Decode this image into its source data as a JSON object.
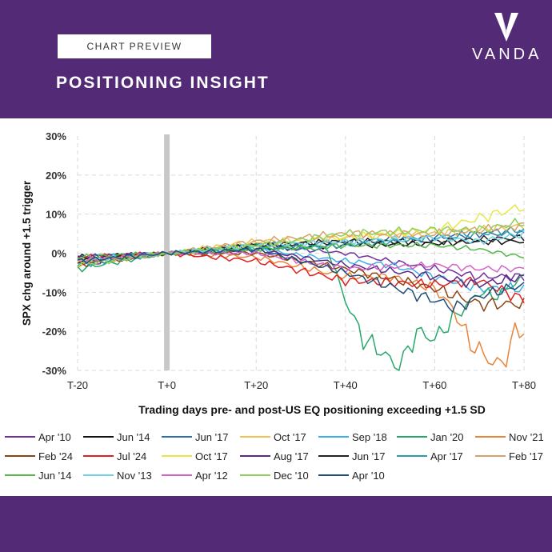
{
  "header": {
    "badge": "CHART PREVIEW",
    "title": "POSITIONING INSIGHT",
    "logo_text": "VANDA"
  },
  "colors": {
    "brand": "#522a76",
    "grid": "#d9d9d9",
    "marker": "#c8c8c8"
  },
  "chart_data": {
    "type": "line",
    "title": "",
    "xlabel": "Trading days pre- and post-US EQ positioning exceeding +1.5 SD",
    "ylabel": "SPX chg around +1.5 trigger",
    "xlim": [
      -20,
      80
    ],
    "ylim": [
      -30,
      30
    ],
    "xticks": [
      -20,
      0,
      20,
      40,
      60,
      80
    ],
    "x_tick_labels": [
      "T-20",
      "T+0",
      "T+20",
      "T+40",
      "T+60",
      "T+80"
    ],
    "yticks": [
      30,
      20,
      10,
      0,
      -10,
      -20,
      -30
    ],
    "y_tick_labels": [
      "30%",
      "20%",
      "10%",
      "0%",
      "-10%",
      "-20%",
      "-30%"
    ],
    "grid": true,
    "trigger_day": 0,
    "series": [
      {
        "name": "Apr '10",
        "color": "#7030a0",
        "points": [
          [
            -20,
            -3
          ],
          [
            0,
            0
          ],
          [
            20,
            2
          ],
          [
            30,
            1
          ],
          [
            40,
            0
          ],
          [
            50,
            -2
          ],
          [
            60,
            -4
          ],
          [
            70,
            -6
          ],
          [
            80,
            -6
          ]
        ]
      },
      {
        "name": "Jun '14",
        "color": "#111111",
        "points": [
          [
            -20,
            -1
          ],
          [
            0,
            0
          ],
          [
            20,
            1
          ],
          [
            40,
            2
          ],
          [
            60,
            2.5
          ],
          [
            70,
            3
          ],
          [
            80,
            3
          ]
        ]
      },
      {
        "name": "Jun '17",
        "color": "#2e6fa8",
        "points": [
          [
            -20,
            -2
          ],
          [
            0,
            0
          ],
          [
            20,
            2
          ],
          [
            40,
            3
          ],
          [
            60,
            4
          ],
          [
            70,
            5
          ],
          [
            80,
            5
          ]
        ]
      },
      {
        "name": "Oct '17",
        "color": "#f2c14e",
        "points": [
          [
            -20,
            -3
          ],
          [
            0,
            0
          ],
          [
            20,
            3
          ],
          [
            40,
            4
          ],
          [
            60,
            5
          ],
          [
            70,
            6
          ],
          [
            80,
            7
          ]
        ]
      },
      {
        "name": "Sep '18",
        "color": "#3bb0e6",
        "points": [
          [
            -20,
            -1
          ],
          [
            0,
            0
          ],
          [
            20,
            1
          ],
          [
            40,
            -2
          ],
          [
            50,
            -3
          ],
          [
            60,
            -6
          ],
          [
            70,
            -9
          ],
          [
            80,
            -9
          ]
        ]
      },
      {
        "name": "Jan '20",
        "color": "#27a86a",
        "points": [
          [
            -20,
            -4
          ],
          [
            0,
            0
          ],
          [
            20,
            2
          ],
          [
            36,
            1
          ],
          [
            40,
            -12
          ],
          [
            44,
            -22
          ],
          [
            48,
            -25
          ],
          [
            52,
            -30
          ],
          [
            56,
            -20
          ],
          [
            60,
            -22
          ],
          [
            64,
            -17
          ],
          [
            70,
            -10
          ],
          [
            74,
            -11
          ],
          [
            80,
            -6
          ]
        ]
      },
      {
        "name": "Nov '21",
        "color": "#e8843a",
        "points": [
          [
            -20,
            -2
          ],
          [
            0,
            0
          ],
          [
            20,
            -1
          ],
          [
            40,
            -6
          ],
          [
            50,
            -6
          ],
          [
            60,
            -9
          ],
          [
            64,
            -14
          ],
          [
            68,
            -23
          ],
          [
            72,
            -27
          ],
          [
            75,
            -29
          ],
          [
            78,
            -20
          ],
          [
            80,
            -20
          ]
        ]
      },
      {
        "name": "Feb '24",
        "color": "#8b4513",
        "points": [
          [
            -20,
            -3
          ],
          [
            0,
            0
          ],
          [
            20,
            0
          ],
          [
            40,
            -4
          ],
          [
            60,
            -9
          ],
          [
            70,
            -13
          ],
          [
            80,
            -13
          ]
        ]
      },
      {
        "name": "Jul '24",
        "color": "#e02020",
        "points": [
          [
            -20,
            -1
          ],
          [
            0,
            0
          ],
          [
            20,
            -2
          ],
          [
            40,
            -7
          ],
          [
            60,
            -8
          ],
          [
            70,
            -7
          ],
          [
            80,
            -12
          ]
        ]
      },
      {
        "name": "Oct '17",
        "color": "#e6e64a",
        "points": [
          [
            -20,
            -2
          ],
          [
            0,
            0
          ],
          [
            20,
            2
          ],
          [
            40,
            4
          ],
          [
            60,
            6
          ],
          [
            70,
            9
          ],
          [
            80,
            12
          ]
        ]
      },
      {
        "name": "Aug '17",
        "color": "#5b2a86",
        "points": [
          [
            -20,
            -1
          ],
          [
            0,
            0
          ],
          [
            20,
            1
          ],
          [
            40,
            -3
          ],
          [
            60,
            -6
          ],
          [
            70,
            -8
          ],
          [
            80,
            -6
          ]
        ]
      },
      {
        "name": "Jun '17",
        "color": "#222222",
        "points": [
          [
            -20,
            -2
          ],
          [
            0,
            0
          ],
          [
            20,
            2
          ],
          [
            40,
            3
          ],
          [
            60,
            3
          ],
          [
            80,
            4
          ]
        ]
      },
      {
        "name": "Apr '17",
        "color": "#2a9db5",
        "points": [
          [
            -20,
            -3
          ],
          [
            0,
            0
          ],
          [
            20,
            1
          ],
          [
            40,
            2
          ],
          [
            60,
            4
          ],
          [
            80,
            6
          ]
        ]
      },
      {
        "name": "Feb '17",
        "color": "#d9a06a",
        "points": [
          [
            -20,
            -2
          ],
          [
            0,
            0
          ],
          [
            20,
            3
          ],
          [
            40,
            5
          ],
          [
            60,
            5
          ],
          [
            80,
            7
          ]
        ]
      },
      {
        "name": "Jun '14",
        "color": "#52b848",
        "points": [
          [
            -20,
            -1
          ],
          [
            0,
            0
          ],
          [
            20,
            1
          ],
          [
            40,
            2
          ],
          [
            60,
            2
          ],
          [
            70,
            1
          ],
          [
            80,
            -1
          ]
        ]
      },
      {
        "name": "Nov '13",
        "color": "#6fd3e6",
        "points": [
          [
            -20,
            -2
          ],
          [
            0,
            0
          ],
          [
            20,
            2
          ],
          [
            40,
            3
          ],
          [
            60,
            4
          ],
          [
            70,
            3
          ],
          [
            80,
            5
          ]
        ]
      },
      {
        "name": "Apr '12",
        "color": "#d462c6",
        "points": [
          [
            -20,
            -2
          ],
          [
            0,
            0
          ],
          [
            20,
            0
          ],
          [
            40,
            -4
          ],
          [
            60,
            -3
          ],
          [
            70,
            -4
          ],
          [
            80,
            -4
          ]
        ]
      },
      {
        "name": "Dec '10",
        "color": "#8ccf5a",
        "points": [
          [
            -20,
            -3
          ],
          [
            0,
            0
          ],
          [
            20,
            2
          ],
          [
            40,
            5
          ],
          [
            60,
            6
          ],
          [
            70,
            6
          ],
          [
            80,
            8
          ]
        ]
      },
      {
        "name": "Apr '10",
        "color": "#1f4e79",
        "points": [
          [
            -20,
            -2
          ],
          [
            0,
            0
          ],
          [
            20,
            1
          ],
          [
            40,
            -5
          ],
          [
            60,
            -12
          ],
          [
            65,
            -14
          ],
          [
            70,
            -11
          ],
          [
            80,
            -8
          ]
        ]
      }
    ]
  }
}
